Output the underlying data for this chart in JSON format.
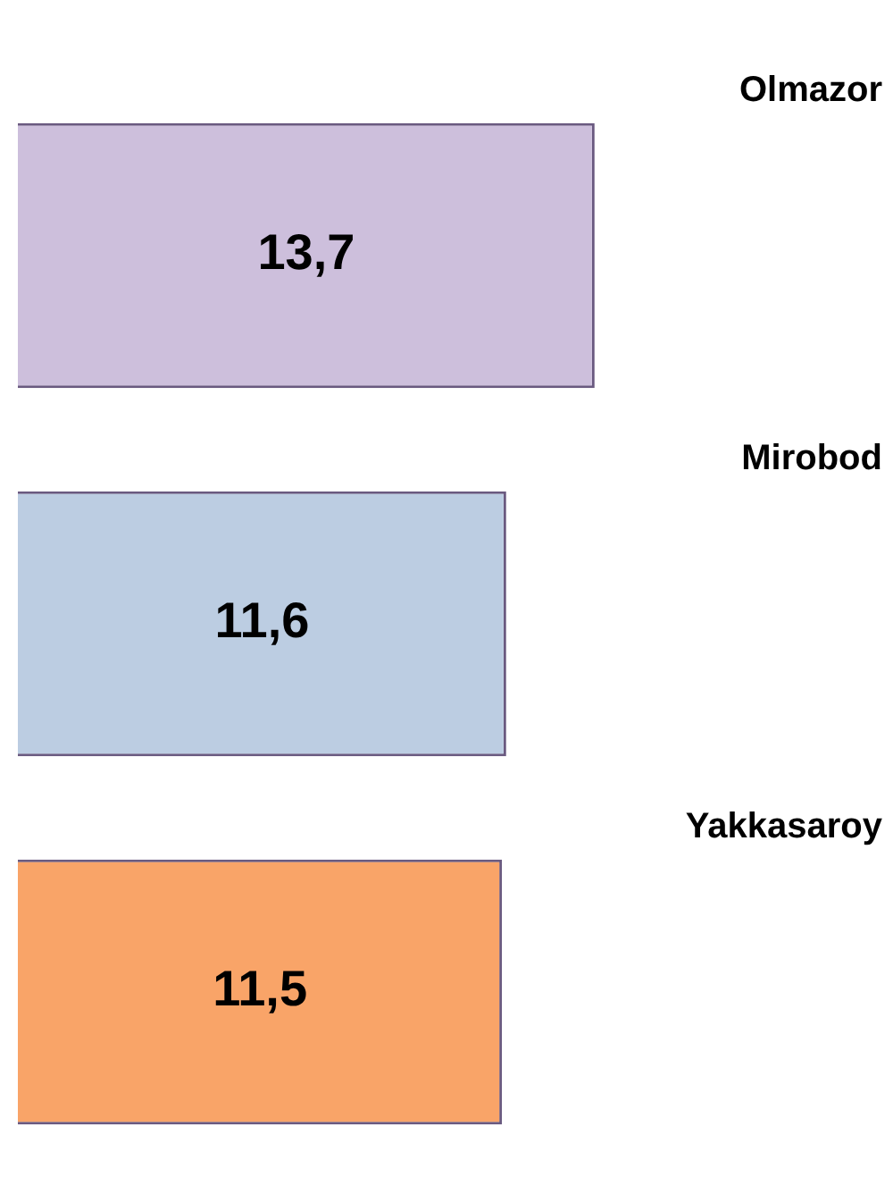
{
  "chart_data": {
    "type": "bar",
    "orientation": "horizontal",
    "categories": [
      "Olmazor",
      "Mirobod",
      "Yakkasaroy"
    ],
    "values": [
      13.7,
      11.6,
      11.5
    ],
    "colors": [
      "#cdbfdc",
      "#bccde2",
      "#f9a468"
    ],
    "value_labels": [
      "13,7",
      "11,6",
      "11,5"
    ],
    "legend": false
  }
}
